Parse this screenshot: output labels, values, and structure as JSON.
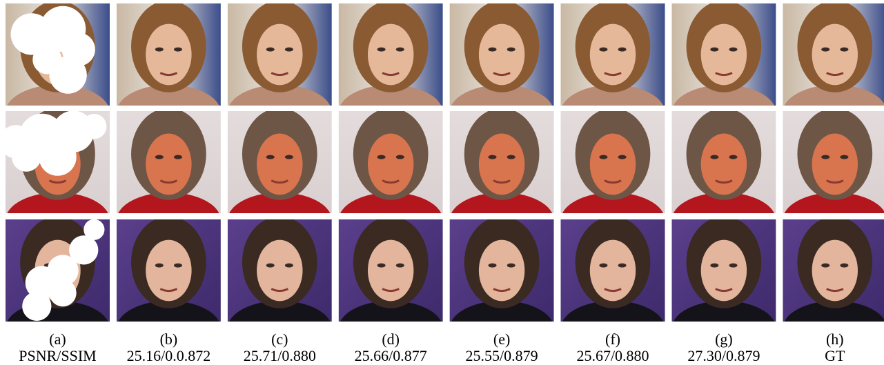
{
  "columns": [
    {
      "label": "(a)",
      "metric": "PSNR/SSIM"
    },
    {
      "label": "(b)",
      "metric": "25.16/0.0.872"
    },
    {
      "label": "(c)",
      "metric": "25.71/0.880"
    },
    {
      "label": "(d)",
      "metric": "25.66/0.877"
    },
    {
      "label": "(e)",
      "metric": "25.55/0.879"
    },
    {
      "label": "(f)",
      "metric": "25.67/0.880"
    },
    {
      "label": "(g)",
      "metric": "27.30/0.879"
    },
    {
      "label": "(h)",
      "metric": "GT"
    }
  ]
}
